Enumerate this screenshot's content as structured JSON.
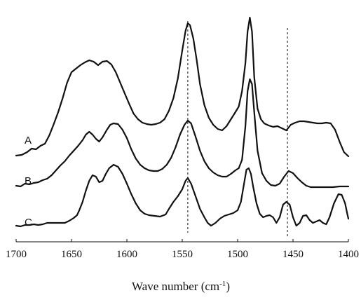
{
  "chart_data": {
    "type": "line",
    "title": "",
    "xlabel_main": "Wave number (cm",
    "xlabel_sup": "-1",
    "xlabel_close": ")",
    "ylabel": "",
    "xlim": [
      1700,
      1400
    ],
    "x_reversed": true,
    "x_ticks": [
      1700,
      1650,
      1600,
      1550,
      1500,
      1450,
      1400
    ],
    "y_axis_visible": false,
    "grid": false,
    "reference_lines": [
      1545,
      1455
    ],
    "series": [
      {
        "name": "A",
        "points": [
          [
            1700,
            222
          ],
          [
            1695,
            221
          ],
          [
            1690,
            217
          ],
          [
            1686,
            212
          ],
          [
            1682,
            213
          ],
          [
            1678,
            208
          ],
          [
            1674,
            205
          ],
          [
            1670,
            193
          ],
          [
            1666,
            177
          ],
          [
            1662,
            160
          ],
          [
            1658,
            140
          ],
          [
            1654,
            118
          ],
          [
            1650,
            103
          ],
          [
            1646,
            98
          ],
          [
            1642,
            93
          ],
          [
            1638,
            89
          ],
          [
            1634,
            86
          ],
          [
            1630,
            88
          ],
          [
            1626,
            93
          ],
          [
            1622,
            88
          ],
          [
            1618,
            87
          ],
          [
            1614,
            92
          ],
          [
            1610,
            103
          ],
          [
            1606,
            118
          ],
          [
            1602,
            133
          ],
          [
            1598,
            148
          ],
          [
            1594,
            162
          ],
          [
            1590,
            170
          ],
          [
            1586,
            175
          ],
          [
            1582,
            177
          ],
          [
            1578,
            178
          ],
          [
            1574,
            177
          ],
          [
            1570,
            175
          ],
          [
            1566,
            170
          ],
          [
            1562,
            158
          ],
          [
            1558,
            140
          ],
          [
            1554,
            112
          ],
          [
            1550,
            72
          ],
          [
            1547,
            44
          ],
          [
            1545,
            33
          ],
          [
            1543,
            36
          ],
          [
            1540,
            55
          ],
          [
            1537,
            85
          ],
          [
            1534,
            120
          ],
          [
            1530,
            150
          ],
          [
            1526,
            168
          ],
          [
            1522,
            178
          ],
          [
            1518,
            184
          ],
          [
            1514,
            186
          ],
          [
            1510,
            180
          ],
          [
            1506,
            170
          ],
          [
            1502,
            160
          ],
          [
            1499,
            152
          ],
          [
            1496,
            130
          ],
          [
            1493,
            90
          ],
          [
            1491,
            45
          ],
          [
            1489,
            25
          ],
          [
            1487,
            45
          ],
          [
            1485,
            110
          ],
          [
            1482,
            155
          ],
          [
            1479,
            170
          ],
          [
            1476,
            176
          ],
          [
            1472,
            179
          ],
          [
            1468,
            181
          ],
          [
            1464,
            180
          ],
          [
            1460,
            183
          ],
          [
            1456,
            186
          ],
          [
            1452,
            178
          ],
          [
            1448,
            175
          ],
          [
            1444,
            173
          ],
          [
            1440,
            173
          ],
          [
            1436,
            174
          ],
          [
            1432,
            175
          ],
          [
            1428,
            176
          ],
          [
            1424,
            176
          ],
          [
            1420,
            175
          ],
          [
            1416,
            176
          ],
          [
            1412,
            185
          ],
          [
            1408,
            202
          ],
          [
            1404,
            217
          ],
          [
            1400,
            223
          ]
        ]
      },
      {
        "name": "B",
        "points": [
          [
            1700,
            265
          ],
          [
            1696,
            266
          ],
          [
            1692,
            262
          ],
          [
            1688,
            263
          ],
          [
            1684,
            261
          ],
          [
            1680,
            260
          ],
          [
            1676,
            257
          ],
          [
            1672,
            255
          ],
          [
            1668,
            250
          ],
          [
            1664,
            243
          ],
          [
            1660,
            236
          ],
          [
            1656,
            230
          ],
          [
            1652,
            222
          ],
          [
            1648,
            215
          ],
          [
            1644,
            208
          ],
          [
            1640,
            200
          ],
          [
            1637,
            192
          ],
          [
            1634,
            188
          ],
          [
            1631,
            192
          ],
          [
            1628,
            198
          ],
          [
            1625,
            202
          ],
          [
            1622,
            196
          ],
          [
            1618,
            185
          ],
          [
            1615,
            178
          ],
          [
            1612,
            176
          ],
          [
            1608,
            177
          ],
          [
            1604,
            185
          ],
          [
            1600,
            197
          ],
          [
            1596,
            213
          ],
          [
            1592,
            226
          ],
          [
            1588,
            235
          ],
          [
            1584,
            240
          ],
          [
            1580,
            243
          ],
          [
            1576,
            244
          ],
          [
            1572,
            244
          ],
          [
            1568,
            241
          ],
          [
            1564,
            235
          ],
          [
            1560,
            225
          ],
          [
            1556,
            210
          ],
          [
            1552,
            192
          ],
          [
            1548,
            178
          ],
          [
            1545,
            172
          ],
          [
            1542,
            176
          ],
          [
            1538,
            195
          ],
          [
            1534,
            215
          ],
          [
            1530,
            230
          ],
          [
            1526,
            240
          ],
          [
            1522,
            246
          ],
          [
            1518,
            250
          ],
          [
            1514,
            252
          ],
          [
            1510,
            252
          ],
          [
            1506,
            248
          ],
          [
            1502,
            243
          ],
          [
            1499,
            240
          ],
          [
            1496,
            228
          ],
          [
            1493,
            180
          ],
          [
            1491,
            130
          ],
          [
            1489,
            113
          ],
          [
            1487,
            120
          ],
          [
            1485,
            160
          ],
          [
            1482,
            215
          ],
          [
            1478,
            247
          ],
          [
            1474,
            258
          ],
          [
            1470,
            264
          ],
          [
            1466,
            265
          ],
          [
            1462,
            262
          ],
          [
            1458,
            252
          ],
          [
            1454,
            244
          ],
          [
            1450,
            247
          ],
          [
            1446,
            254
          ],
          [
            1442,
            260
          ],
          [
            1438,
            265
          ],
          [
            1434,
            267
          ],
          [
            1428,
            267
          ],
          [
            1420,
            267
          ],
          [
            1414,
            267
          ],
          [
            1408,
            266
          ],
          [
            1402,
            266
          ],
          [
            1400,
            266
          ]
        ]
      },
      {
        "name": "C",
        "points": [
          [
            1700,
            322
          ],
          [
            1696,
            323
          ],
          [
            1692,
            321
          ],
          [
            1688,
            321
          ],
          [
            1684,
            320
          ],
          [
            1680,
            321
          ],
          [
            1676,
            320
          ],
          [
            1672,
            318
          ],
          [
            1668,
            318
          ],
          [
            1664,
            318
          ],
          [
            1660,
            318
          ],
          [
            1656,
            318
          ],
          [
            1652,
            315
          ],
          [
            1648,
            311
          ],
          [
            1645,
            307
          ],
          [
            1643,
            300
          ],
          [
            1640,
            288
          ],
          [
            1637,
            272
          ],
          [
            1634,
            258
          ],
          [
            1631,
            250
          ],
          [
            1628,
            252
          ],
          [
            1625,
            260
          ],
          [
            1622,
            258
          ],
          [
            1619,
            248
          ],
          [
            1616,
            240
          ],
          [
            1612,
            235
          ],
          [
            1608,
            238
          ],
          [
            1604,
            248
          ],
          [
            1600,
            262
          ],
          [
            1596,
            277
          ],
          [
            1592,
            290
          ],
          [
            1588,
            300
          ],
          [
            1584,
            305
          ],
          [
            1580,
            307
          ],
          [
            1575,
            308
          ],
          [
            1570,
            309
          ],
          [
            1565,
            306
          ],
          [
            1562,
            298
          ],
          [
            1558,
            288
          ],
          [
            1554,
            280
          ],
          [
            1550,
            270
          ],
          [
            1547,
            258
          ],
          [
            1545,
            254
          ],
          [
            1542,
            262
          ],
          [
            1538,
            280
          ],
          [
            1534,
            298
          ],
          [
            1530,
            310
          ],
          [
            1527,
            318
          ],
          [
            1524,
            322
          ],
          [
            1520,
            318
          ],
          [
            1516,
            312
          ],
          [
            1512,
            308
          ],
          [
            1508,
            306
          ],
          [
            1504,
            304
          ],
          [
            1500,
            300
          ],
          [
            1497,
            288
          ],
          [
            1494,
            260
          ],
          [
            1492,
            242
          ],
          [
            1490,
            240
          ],
          [
            1488,
            248
          ],
          [
            1486,
            266
          ],
          [
            1483,
            290
          ],
          [
            1480,
            305
          ],
          [
            1477,
            310
          ],
          [
            1474,
            308
          ],
          [
            1471,
            307
          ],
          [
            1468,
            310
          ],
          [
            1465,
            318
          ],
          [
            1462,
            310
          ],
          [
            1459,
            292
          ],
          [
            1456,
            288
          ],
          [
            1453,
            292
          ],
          [
            1450,
            310
          ],
          [
            1447,
            322
          ],
          [
            1444,
            318
          ],
          [
            1441,
            308
          ],
          [
            1438,
            307
          ],
          [
            1435,
            314
          ],
          [
            1432,
            318
          ],
          [
            1429,
            316
          ],
          [
            1426,
            314
          ],
          [
            1423,
            318
          ],
          [
            1420,
            320
          ],
          [
            1417,
            310
          ],
          [
            1413,
            290
          ],
          [
            1409,
            277
          ],
          [
            1406,
            278
          ],
          [
            1403,
            290
          ],
          [
            1401,
            305
          ],
          [
            1400,
            312
          ]
        ]
      }
    ]
  }
}
